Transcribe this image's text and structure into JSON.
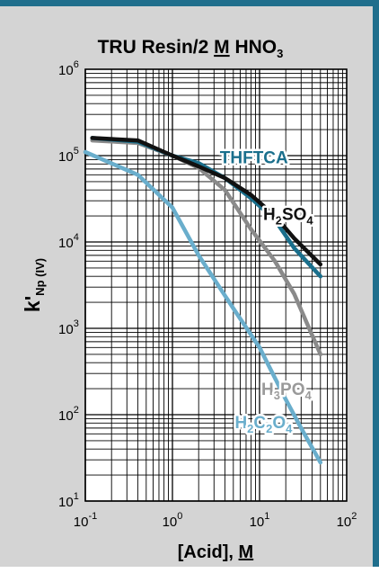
{
  "chart_data": {
    "type": "line",
    "title": "TRU Resin/2 M HNO3",
    "title_parts": {
      "lead": "TRU Resin/2 ",
      "molarity": "M",
      "acid": " HNO",
      "acid_sub": "3"
    },
    "ylabel": {
      "main": "k'",
      "sub": "Np (IV)"
    },
    "xlabel": {
      "lead": "[Acid], ",
      "unit": "M"
    },
    "x_scale": "log",
    "y_scale": "log",
    "xlim": [
      0.1,
      100
    ],
    "ylim": [
      10,
      1000000
    ],
    "grid": true,
    "x_ticks": [
      {
        "base": "10",
        "exp": "-1"
      },
      {
        "base": "10",
        "exp": "0"
      },
      {
        "base": "10",
        "exp": "1"
      },
      {
        "base": "10",
        "exp": "2"
      }
    ],
    "y_ticks": [
      {
        "base": "10",
        "exp": "1"
      },
      {
        "base": "10",
        "exp": "2"
      },
      {
        "base": "10",
        "exp": "3"
      },
      {
        "base": "10",
        "exp": "4"
      },
      {
        "base": "10",
        "exp": "5"
      },
      {
        "base": "10",
        "exp": "6"
      }
    ],
    "series": [
      {
        "name": "H3PO4",
        "label_parts": [
          [
            "H",
            "n"
          ],
          [
            "3",
            "s"
          ],
          [
            "PO",
            "n"
          ],
          [
            "4",
            "s"
          ]
        ],
        "color": "#8a8a8a",
        "label_color": "#9a9a9a",
        "x": [
          0.12,
          0.4,
          1,
          2,
          4,
          8,
          15,
          25,
          50
        ],
        "y": [
          150000,
          140000,
          100000,
          72000,
          40000,
          14000,
          6000,
          2500,
          500
        ]
      },
      {
        "name": "THFTCA",
        "label_parts": [
          [
            "THFTCA",
            "n"
          ]
        ],
        "color": "#1a6f8c",
        "label_color": "#1a6f8c",
        "x": [
          0.12,
          0.4,
          1,
          2,
          4,
          8,
          15,
          25,
          50
        ],
        "y": [
          160000,
          145000,
          100000,
          82000,
          55000,
          32000,
          18000,
          8500,
          4000
        ]
      },
      {
        "name": "H2SO4",
        "label_parts": [
          [
            "H",
            "n"
          ],
          [
            "2",
            "s"
          ],
          [
            "SO",
            "n"
          ],
          [
            "4",
            "s"
          ]
        ],
        "color": "#111111",
        "label_color": "#111111",
        "x": [
          0.12,
          0.4,
          1,
          2,
          4,
          8,
          15,
          25,
          50
        ],
        "y": [
          160000,
          150000,
          100000,
          75000,
          55000,
          35000,
          20000,
          11000,
          5500
        ]
      },
      {
        "name": "H2C2O4",
        "label_parts": [
          [
            "H",
            "n"
          ],
          [
            "2",
            "s"
          ],
          [
            "C",
            "n"
          ],
          [
            "2",
            "s"
          ],
          [
            "O",
            "n"
          ],
          [
            "4",
            "s"
          ]
        ],
        "color": "#6aaecc",
        "label_color": "#6aaecc",
        "x": [
          0.1,
          0.4,
          1,
          2,
          5,
          10,
          20,
          30,
          50
        ],
        "y": [
          110000,
          60000,
          25000,
          7000,
          1700,
          600,
          150,
          70,
          28
        ]
      }
    ]
  }
}
